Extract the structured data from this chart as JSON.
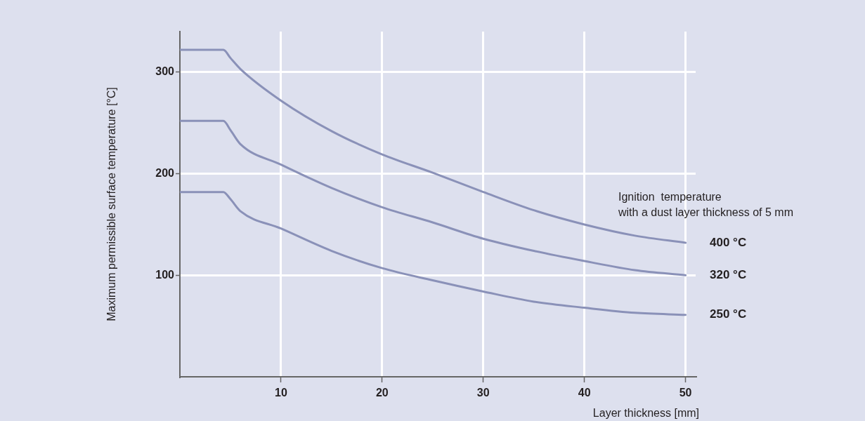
{
  "chart_data": {
    "type": "line",
    "xlabel": "Layer thickness [mm]",
    "ylabel": "Maximum permissible surface temperature [°C]",
    "legend_title": "Ignition  temperature\nwith a dust layer thickness of 5 mm",
    "xlim": [
      0,
      51
    ],
    "ylim": [
      0,
      340
    ],
    "xticks": [
      10,
      20,
      30,
      40,
      50
    ],
    "yticks": [
      100,
      200,
      300
    ],
    "grid": true,
    "legend": false,
    "marker": "none",
    "line_style": "solid",
    "x": [
      0,
      4.3,
      5,
      6,
      10,
      15,
      20,
      25,
      30,
      35,
      40,
      45,
      50
    ],
    "series": [
      {
        "name": "400 °C",
        "color": "#8a91b8",
        "values": [
          322,
          322,
          314,
          303,
          272,
          242,
          219,
          201,
          182,
          164,
          150,
          139,
          132
        ]
      },
      {
        "name": "320 °C",
        "color": "#8a91b8",
        "values": [
          252,
          252,
          243,
          229,
          209,
          186,
          167,
          152,
          136,
          124,
          114,
          105,
          100
        ]
      },
      {
        "name": "250 °C",
        "color": "#8a91b8",
        "values": [
          182,
          182,
          175,
          163,
          146,
          124,
          107,
          95,
          84,
          74,
          68,
          63,
          61
        ]
      }
    ]
  }
}
